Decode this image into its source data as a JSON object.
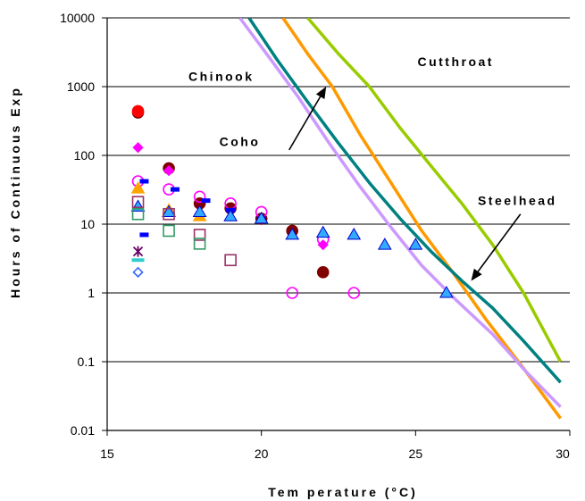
{
  "chart_data": {
    "type": "scatter",
    "title": "",
    "xlabel": "Tem perature (°C)",
    "ylabel": "Hours of Continuous Exp",
    "x_ticks": [
      "15",
      "20",
      "25",
      "30"
    ],
    "y_ticks": [
      "0.01",
      "0.1",
      "1",
      "10",
      "100",
      "1000",
      "10000"
    ],
    "xlim": [
      15,
      30
    ],
    "ylim": [
      0.01,
      10000
    ],
    "y_scale": "log",
    "grid": "horizontal",
    "annotations": [
      {
        "text": "Chinook",
        "x": 18.7,
        "y": 1400
      },
      {
        "text": "Cutthroat",
        "x": 26.3,
        "y": 2300
      },
      {
        "text": "Coho",
        "x": 19.3,
        "y": 160
      },
      {
        "text": "Steelhead",
        "x": 28.3,
        "y": 22
      }
    ],
    "arrows": [
      {
        "label": "Coho",
        "from": [
          20.9,
          120
        ],
        "to": [
          22.1,
          1000
        ]
      },
      {
        "label": "Steelhead",
        "from": [
          28.4,
          14
        ],
        "to": [
          26.8,
          1.5
        ]
      }
    ],
    "lines": [
      {
        "color": "#99cc00",
        "points": [
          [
            21.5,
            10000
          ],
          [
            22.5,
            3000
          ],
          [
            23.5,
            1000
          ],
          [
            24.5,
            250
          ],
          [
            25.5,
            70
          ],
          [
            26.5,
            20
          ],
          [
            27.5,
            5
          ],
          [
            28.5,
            1
          ],
          [
            29.7,
            0.1
          ]
        ]
      },
      {
        "color": "#ff9900",
        "points": [
          [
            20.7,
            10000
          ],
          [
            21.5,
            3000
          ],
          [
            22.3,
            1000
          ],
          [
            23.2,
            200
          ],
          [
            24.2,
            40
          ],
          [
            25.2,
            8
          ],
          [
            26.2,
            2
          ],
          [
            27.3,
            0.4
          ],
          [
            28.5,
            0.08
          ],
          [
            29.7,
            0.015
          ]
        ]
      },
      {
        "color": "#008080",
        "points": [
          [
            19.6,
            10000
          ],
          [
            20.5,
            2500
          ],
          [
            21.5,
            600
          ],
          [
            22.5,
            150
          ],
          [
            23.5,
            40
          ],
          [
            24.5,
            12
          ],
          [
            25.5,
            4
          ],
          [
            26.5,
            1.5
          ],
          [
            27.5,
            0.6
          ],
          [
            28.5,
            0.2
          ],
          [
            29.7,
            0.05
          ]
        ]
      },
      {
        "color": "#cc99ff",
        "points": [
          [
            19.3,
            10000
          ],
          [
            20.3,
            2500
          ],
          [
            21.2,
            700
          ],
          [
            22.2,
            150
          ],
          [
            23.2,
            35
          ],
          [
            24.2,
            9
          ],
          [
            25.2,
            2.5
          ],
          [
            26.3,
            0.8
          ],
          [
            27.5,
            0.25
          ],
          [
            28.6,
            0.07
          ],
          [
            29.7,
            0.022
          ]
        ]
      }
    ],
    "markers": [
      {
        "shape": "circle",
        "fill": "#800000",
        "stroke": "#800000",
        "points": [
          [
            16,
            420
          ],
          [
            17,
            65
          ],
          [
            18,
            20
          ],
          [
            19,
            17
          ],
          [
            20,
            12
          ],
          [
            21,
            8
          ],
          [
            22,
            2
          ]
        ]
      },
      {
        "shape": "circle",
        "fill": "#ff0000",
        "stroke": "#ff0000",
        "points": [
          [
            16,
            440
          ]
        ]
      },
      {
        "shape": "circle",
        "fill": "none",
        "stroke": "#ff00ff",
        "points": [
          [
            16,
            42
          ],
          [
            17,
            32
          ],
          [
            18,
            25
          ],
          [
            19,
            20
          ],
          [
            20,
            15
          ],
          [
            21,
            1
          ],
          [
            22,
            6
          ],
          [
            23,
            1
          ]
        ]
      },
      {
        "shape": "diamond",
        "fill": "#ff00ff",
        "stroke": "#ff00ff",
        "points": [
          [
            16,
            130
          ],
          [
            17,
            60
          ],
          [
            22,
            5
          ]
        ]
      },
      {
        "shape": "dash",
        "fill": "#0000ff",
        "stroke": "#0000ff",
        "points": [
          [
            16.2,
            42
          ],
          [
            17.2,
            32
          ],
          [
            18.2,
            22
          ],
          [
            19,
            16
          ],
          [
            20,
            12
          ],
          [
            16.2,
            7
          ]
        ]
      },
      {
        "shape": "triangle",
        "fill": "#ffa500",
        "stroke": "#ffa500",
        "points": [
          [
            16,
            33
          ],
          [
            17,
            16
          ],
          [
            18,
            13
          ]
        ]
      },
      {
        "shape": "triangle",
        "fill": "#33aaff",
        "stroke": "#0000cc",
        "points": [
          [
            16,
            18
          ],
          [
            17,
            15
          ],
          [
            18,
            15
          ],
          [
            19,
            13
          ],
          [
            20,
            12
          ],
          [
            21,
            7
          ],
          [
            22,
            7.5
          ],
          [
            23,
            7
          ],
          [
            24,
            5
          ],
          [
            25,
            5
          ],
          [
            26,
            1
          ]
        ]
      },
      {
        "shape": "square",
        "fill": "none",
        "stroke": "#993366",
        "points": [
          [
            16,
            21
          ],
          [
            17,
            14
          ],
          [
            18,
            7
          ],
          [
            19,
            3
          ]
        ]
      },
      {
        "shape": "square",
        "fill": "none",
        "stroke": "#339966",
        "points": [
          [
            16,
            14
          ],
          [
            17,
            8
          ],
          [
            18,
            5.2
          ]
        ]
      },
      {
        "shape": "star",
        "fill": "none",
        "stroke": "#660066",
        "points": [
          [
            16,
            4
          ]
        ]
      },
      {
        "shape": "hbar",
        "fill": "#33cccc",
        "stroke": "#33cccc",
        "points": [
          [
            16,
            3
          ]
        ]
      },
      {
        "shape": "diamond",
        "fill": "none",
        "stroke": "#3366ff",
        "points": [
          [
            16,
            2
          ]
        ]
      }
    ]
  }
}
